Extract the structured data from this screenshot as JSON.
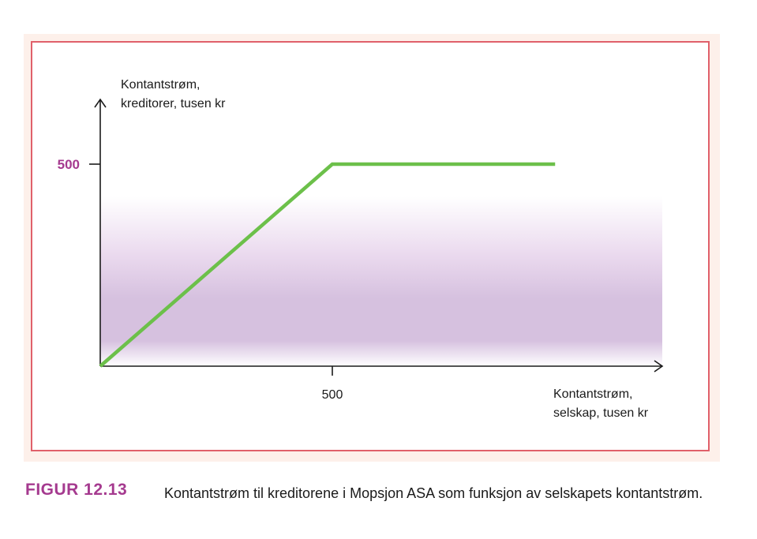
{
  "chart_data": {
    "type": "line",
    "ylabel_lines": [
      "Kontantstrøm,",
      "kreditorer, tusen kr"
    ],
    "xlabel_lines": [
      "Kontantstrøm,",
      "selskap, tusen kr"
    ],
    "x_ticks": [
      {
        "value": 500,
        "label": "500"
      }
    ],
    "y_ticks": [
      {
        "value": 500,
        "label": "500"
      }
    ],
    "xlim": [
      0,
      1400
    ],
    "ylim": [
      0,
      1000
    ],
    "series": [
      {
        "x": [
          0,
          500,
          980
        ],
        "y": [
          0,
          500,
          500
        ]
      }
    ],
    "grid": false,
    "colors": {
      "line": "#6cc04a",
      "axis": "#1a1a1a",
      "y_tick_label": "#a53a8f",
      "band": "#d3bddd",
      "frame": "#e0606a",
      "panel": "#fdf0ea"
    }
  },
  "caption": {
    "label": "FIGUR 12.13",
    "text": "Kontantstrøm til kreditorene i Mopsjon ASA som funksjon av selskapets kontantstrøm."
  }
}
